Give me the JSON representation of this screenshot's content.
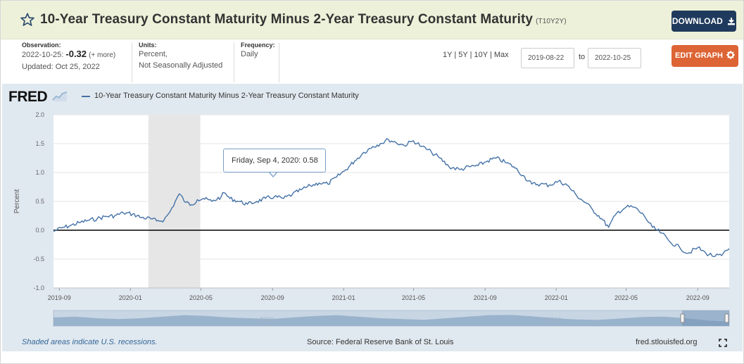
{
  "header": {
    "title": "10-Year Treasury Constant Maturity Minus 2-Year Treasury Constant Maturity",
    "series_id": "(T10Y2Y)",
    "download_label": "DOWNLOAD",
    "star_icon": "star-outline-icon"
  },
  "meta": {
    "observation_label": "Observation:",
    "observation_date": "2022-10-25:",
    "observation_value": "-0.32",
    "observation_more": "(+ more)",
    "updated": "Updated: Oct 25, 2022",
    "units_label": "Units:",
    "units_line1": "Percent,",
    "units_line2": "Not Seasonally Adjusted",
    "frequency_label": "Frequency:",
    "frequency": "Daily"
  },
  "controls": {
    "range_1y": "1Y",
    "range_5y": "5Y",
    "range_10y": "10Y",
    "range_max": "Max",
    "separator": "|",
    "start_date": "2019-08-22",
    "to_label": "to",
    "end_date": "2022-10-25",
    "edit_label": "EDIT GRAPH"
  },
  "chart": {
    "logo": "FRED",
    "legend": "10-Year Treasury Constant Maturity Minus 2-Year Treasury Constant Maturity",
    "tooltip_date": "Friday, Sep 4, 2020:",
    "tooltip_value": "0.58",
    "navigator_labels": [
      "2000",
      "2010"
    ]
  },
  "footer": {
    "recession_note": "Shaded areas indicate U.S. recessions.",
    "source": "Source: Federal Reserve Bank of St. Louis",
    "site": "fred.stlouisfed.org"
  },
  "colors": {
    "title_bar": "#eef1da",
    "download": "#1f3a5c",
    "edit": "#dd6434",
    "panel": "#e1e9f0",
    "line": "#4572a7",
    "recession": "#e6e6e6"
  },
  "chart_data": {
    "type": "line",
    "ylabel": "Percent",
    "ylim": [
      -1.0,
      2.0
    ],
    "yticks": [
      "2.0",
      "1.5",
      "1.0",
      "0.5",
      "0.0",
      "-0.5",
      "-1.0"
    ],
    "xticks": [
      "2019-09",
      "2020-01",
      "2020-05",
      "2020-09",
      "2021-01",
      "2021-05",
      "2021-09",
      "2022-01",
      "2022-05",
      "2022-09"
    ],
    "recession": [
      "2020-02-01",
      "2020-04-30"
    ],
    "zero_line": 0.0,
    "grid": "horizontal",
    "x": [
      "2019-08-22",
      "2019-09-05",
      "2019-09-20",
      "2019-10-05",
      "2019-10-20",
      "2019-11-05",
      "2019-11-20",
      "2019-12-05",
      "2019-12-20",
      "2020-01-05",
      "2020-01-20",
      "2020-02-05",
      "2020-02-15",
      "2020-02-28",
      "2020-03-09",
      "2020-03-18",
      "2020-03-25",
      "2020-04-05",
      "2020-04-15",
      "2020-04-25",
      "2020-05-05",
      "2020-05-20",
      "2020-06-05",
      "2020-06-10",
      "2020-06-20",
      "2020-07-05",
      "2020-07-20",
      "2020-08-05",
      "2020-08-20",
      "2020-09-04",
      "2020-09-20",
      "2020-10-05",
      "2020-10-20",
      "2020-11-05",
      "2020-11-20",
      "2020-12-05",
      "2020-12-20",
      "2021-01-05",
      "2021-01-20",
      "2021-02-05",
      "2021-02-20",
      "2021-03-05",
      "2021-03-19",
      "2021-04-01",
      "2021-04-15",
      "2021-05-01",
      "2021-05-15",
      "2021-06-01",
      "2021-06-15",
      "2021-07-01",
      "2021-07-20",
      "2021-08-05",
      "2021-08-20",
      "2021-09-05",
      "2021-09-20",
      "2021-10-05",
      "2021-10-20",
      "2021-11-05",
      "2021-11-20",
      "2021-12-05",
      "2021-12-20",
      "2022-01-05",
      "2022-01-20",
      "2022-02-05",
      "2022-02-20",
      "2022-03-05",
      "2022-03-20",
      "2022-04-01",
      "2022-04-15",
      "2022-05-01",
      "2022-05-15",
      "2022-06-01",
      "2022-06-15",
      "2022-07-01",
      "2022-07-15",
      "2022-08-01",
      "2022-08-15",
      "2022-09-01",
      "2022-09-15",
      "2022-10-01",
      "2022-10-12",
      "2022-10-25"
    ],
    "values": [
      -0.02,
      0.04,
      0.08,
      0.13,
      0.17,
      0.2,
      0.24,
      0.25,
      0.3,
      0.28,
      0.22,
      0.2,
      0.16,
      0.18,
      0.32,
      0.5,
      0.63,
      0.48,
      0.44,
      0.53,
      0.55,
      0.5,
      0.58,
      0.65,
      0.55,
      0.5,
      0.45,
      0.5,
      0.55,
      0.58,
      0.55,
      0.62,
      0.7,
      0.77,
      0.82,
      0.8,
      0.92,
      1.05,
      1.2,
      1.35,
      1.45,
      1.5,
      1.57,
      1.52,
      1.47,
      1.55,
      1.45,
      1.35,
      1.25,
      1.1,
      1.05,
      1.1,
      1.12,
      1.2,
      1.25,
      1.18,
      1.1,
      0.95,
      0.8,
      0.8,
      0.78,
      0.85,
      0.78,
      0.6,
      0.48,
      0.35,
      0.2,
      0.05,
      0.3,
      0.4,
      0.4,
      0.25,
      0.05,
      -0.05,
      -0.2,
      -0.3,
      -0.4,
      -0.3,
      -0.4,
      -0.45,
      -0.44,
      -0.32
    ]
  }
}
